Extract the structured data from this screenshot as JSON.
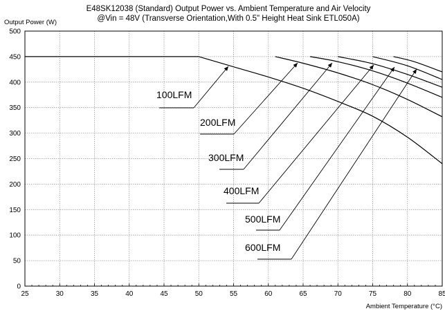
{
  "chart_data": {
    "type": "line",
    "title": "E48SK12038 (Standard)  Output Power vs. Ambient Temperature and Air Velocity",
    "subtitle": "@Vin = 48V (Transverse Orientation,With  0.5\" Height Heat Sink ETL050A)",
    "xlabel": "Ambient  Temperature (°C)",
    "ylabel": "Output Power (W)",
    "xlim": [
      25,
      85
    ],
    "ylim": [
      0,
      500
    ],
    "xticks": [
      25,
      30,
      35,
      40,
      45,
      50,
      55,
      60,
      65,
      70,
      75,
      80,
      85
    ],
    "yticks": [
      0,
      50,
      100,
      150,
      200,
      250,
      300,
      350,
      400,
      450,
      500
    ],
    "grid": true,
    "series": [
      {
        "name": "100LFM",
        "x": [
          50,
          55,
          60,
          65,
          70,
          75,
          80,
          85
        ],
        "y": [
          450,
          430,
          410,
          388,
          362,
          333,
          292,
          240
        ]
      },
      {
        "name": "200LFM",
        "x": [
          61,
          65,
          70,
          75,
          80,
          85
        ],
        "y": [
          450,
          437,
          418,
          395,
          366,
          332
        ]
      },
      {
        "name": "300LFM",
        "x": [
          66,
          70,
          75,
          80,
          85
        ],
        "y": [
          450,
          440,
          422,
          398,
          370
        ]
      },
      {
        "name": "400LFM",
        "x": [
          70,
          75,
          80,
          85
        ],
        "y": [
          450,
          436,
          415,
          390
        ]
      },
      {
        "name": "500LFM",
        "x": [
          75,
          80,
          85
        ],
        "y": [
          450,
          432,
          405
        ]
      },
      {
        "name": "600LFM",
        "x": [
          78,
          81,
          85
        ],
        "y": [
          450,
          440,
          420
        ]
      }
    ]
  }
}
